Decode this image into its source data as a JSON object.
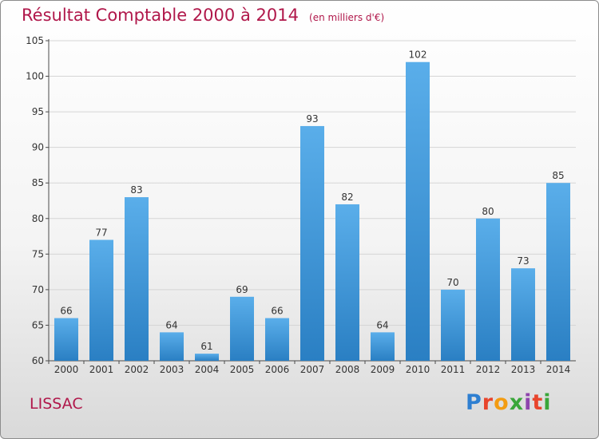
{
  "header": {
    "title": "Résultat Comptable 2000 à 2014",
    "unit": "(en milliers d'€)"
  },
  "footer": {
    "city": "LISSAC",
    "logo": "Proxiti",
    "logo_colors": [
      "#2e7fd1",
      "#e8452c",
      "#f39c12",
      "#3aa63a",
      "#8e44ad",
      "#e8452c",
      "#3aa63a"
    ]
  },
  "colors": {
    "bar_light": "#5aaeea",
    "bar_dark": "#2a7fc3",
    "title": "#b0174a",
    "axis": "#4a4a4a",
    "grid": "#d5d5d5"
  },
  "chart_data": {
    "type": "bar",
    "title": "Résultat Comptable 2000 à 2014",
    "subtitle": "(en milliers d'€)",
    "xlabel": "",
    "ylabel": "",
    "categories": [
      "2000",
      "2001",
      "2002",
      "2003",
      "2004",
      "2005",
      "2006",
      "2007",
      "2008",
      "2009",
      "2010",
      "2011",
      "2012",
      "2013",
      "2014"
    ],
    "values": [
      66,
      77,
      83,
      64,
      61,
      69,
      66,
      93,
      82,
      64,
      102,
      70,
      80,
      73,
      85
    ],
    "labels": [
      "66",
      "77",
      "83",
      "64",
      "61",
      "69",
      "66",
      "93",
      "82",
      "64",
      "102",
      "70",
      "80",
      "73",
      "85"
    ],
    "ylim": [
      60,
      105
    ],
    "yticks": [
      "60",
      "65",
      "70",
      "75",
      "80",
      "85",
      "90",
      "95",
      "100",
      "105"
    ],
    "grid": true
  }
}
